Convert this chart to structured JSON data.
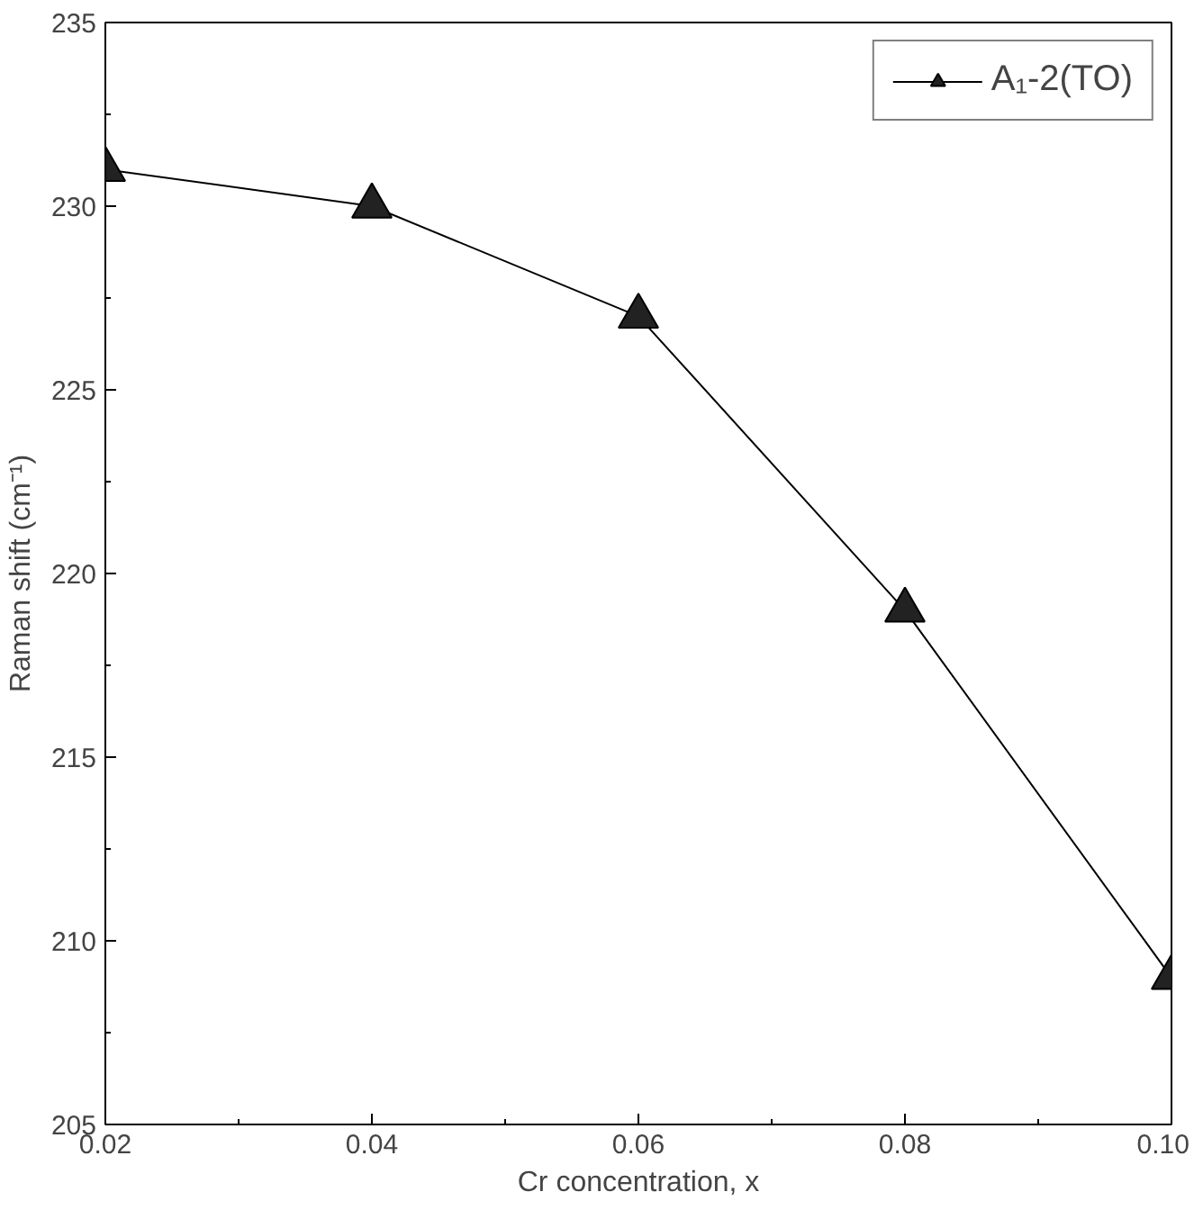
{
  "chart_data": {
    "type": "line",
    "xlabel": "Cr concentration, x",
    "ylabel": "Raman shift (cm⁻¹)",
    "x": [
      0.02,
      0.04,
      0.06,
      0.08,
      0.1
    ],
    "series": [
      {
        "name": "A₁-2(TO)",
        "color": "#000000",
        "values": [
          231,
          230,
          227,
          219,
          209
        ]
      }
    ],
    "xlim": [
      0.02,
      0.1
    ],
    "ylim": [
      205,
      235
    ],
    "xticks": [
      {
        "value": 0.02,
        "label": "0.02"
      },
      {
        "value": 0.04,
        "label": "0.04"
      },
      {
        "value": 0.06,
        "label": "0.06"
      },
      {
        "value": 0.08,
        "label": "0.08"
      },
      {
        "value": 0.1,
        "label": "0.10"
      }
    ],
    "yticks": [
      205,
      210,
      215,
      220,
      225,
      230,
      235
    ],
    "marker": "triangle",
    "line_style": "solid",
    "legend": "top right",
    "grid": false
  }
}
